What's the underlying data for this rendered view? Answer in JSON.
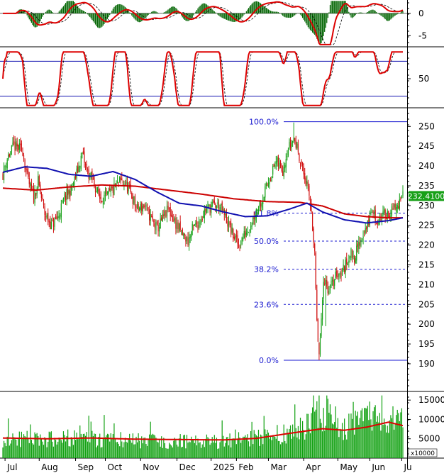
{
  "chart_data": {
    "type": "candlestick",
    "panels": [
      {
        "name": "",
        "ylim": [
          -7.5,
          3
        ],
        "yticks": [
          0,
          -5
        ],
        "zero_line": true
      },
      {
        "name": "",
        "ylim": [
          0,
          100
        ],
        "yticks": [
          50
        ],
        "reference_lines": [
          20,
          80
        ]
      },
      {
        "name": "",
        "ylim": [
          183,
          254
        ],
        "yticks": [
          190,
          195,
          200,
          205,
          210,
          215,
          220,
          225,
          230,
          235,
          240,
          245,
          250
        ],
        "last_price_label": "232.4100",
        "fibonacci": {
          "levels": [
            {
              "label": "100.0%",
              "value": 251.2
            },
            {
              "label": "61.8%",
              "value": 228.1
            },
            {
              "label": "50.0%",
              "value": 221.0
            },
            {
              "label": "38.2%",
              "value": 213.9
            },
            {
              "label": "23.6%",
              "value": 205.0
            },
            {
              "label": "0.0%",
              "value": 190.9
            }
          ]
        },
        "price_keypoints": [
          [
            0,
            238
          ],
          [
            4,
            242
          ],
          [
            10,
            245
          ],
          [
            18,
            244
          ],
          [
            22,
            237
          ],
          [
            28,
            232
          ],
          [
            32,
            236
          ],
          [
            38,
            228
          ],
          [
            44,
            225
          ],
          [
            50,
            227
          ],
          [
            56,
            232
          ],
          [
            62,
            234
          ],
          [
            68,
            239
          ],
          [
            72,
            243
          ],
          [
            76,
            239
          ],
          [
            82,
            236
          ],
          [
            88,
            232
          ],
          [
            94,
            232
          ],
          [
            100,
            234
          ],
          [
            106,
            236
          ],
          [
            110,
            236
          ],
          [
            116,
            233
          ],
          [
            122,
            229
          ],
          [
            128,
            230
          ],
          [
            134,
            227
          ],
          [
            140,
            224
          ],
          [
            146,
            227
          ],
          [
            150,
            229
          ],
          [
            156,
            226
          ],
          [
            162,
            223
          ],
          [
            168,
            221
          ],
          [
            172,
            224
          ],
          [
            178,
            226
          ],
          [
            184,
            229
          ],
          [
            190,
            230
          ],
          [
            196,
            230
          ],
          [
            202,
            227
          ],
          [
            208,
            223
          ],
          [
            214,
            220
          ],
          [
            220,
            223
          ],
          [
            226,
            226
          ],
          [
            230,
            229
          ],
          [
            236,
            232
          ],
          [
            242,
            237
          ],
          [
            248,
            241
          ],
          [
            254,
            239
          ],
          [
            258,
            244
          ],
          [
            264,
            247
          ],
          [
            268,
            244
          ],
          [
            272,
            239
          ],
          [
            276,
            235
          ],
          [
            280,
            229
          ],
          [
            283,
            217
          ],
          [
            285,
            200
          ],
          [
            287,
            192
          ],
          [
            289,
            200
          ],
          [
            291,
            212
          ],
          [
            295,
            209
          ],
          [
            299,
            210
          ],
          [
            303,
            213
          ],
          [
            307,
            213
          ],
          [
            311,
            215
          ],
          [
            315,
            218
          ],
          [
            319,
            217
          ],
          [
            323,
            220
          ],
          [
            327,
            223
          ],
          [
            331,
            225
          ],
          [
            335,
            229
          ],
          [
            339,
            226
          ],
          [
            343,
            227
          ],
          [
            347,
            228
          ],
          [
            351,
            228
          ],
          [
            355,
            229
          ],
          [
            359,
            230
          ],
          [
            363,
            232.4
          ]
        ],
        "sma_fast_keypoints": [
          [
            0,
            238.4
          ],
          [
            20,
            239.8
          ],
          [
            40,
            239.4
          ],
          [
            60,
            237.9
          ],
          [
            80,
            237.4
          ],
          [
            100,
            238.6
          ],
          [
            120,
            236.6
          ],
          [
            140,
            233.4
          ],
          [
            160,
            230.6
          ],
          [
            180,
            229.9
          ],
          [
            200,
            228.4
          ],
          [
            220,
            227.2
          ],
          [
            240,
            227.4
          ],
          [
            260,
            229.1
          ],
          [
            276,
            230.6
          ],
          [
            290,
            228.4
          ],
          [
            310,
            226.4
          ],
          [
            330,
            225.6
          ],
          [
            350,
            226.2
          ],
          [
            363,
            226.9
          ]
        ],
        "sma_slow_keypoints": [
          [
            0,
            234.4
          ],
          [
            30,
            233.9
          ],
          [
            60,
            234.7
          ],
          [
            90,
            235.2
          ],
          [
            120,
            234.9
          ],
          [
            150,
            233.9
          ],
          [
            180,
            232.9
          ],
          [
            210,
            231.7
          ],
          [
            240,
            231.0
          ],
          [
            270,
            230.8
          ],
          [
            290,
            229.9
          ],
          [
            310,
            227.9
          ],
          [
            330,
            227.2
          ],
          [
            350,
            226.9
          ],
          [
            363,
            226.9
          ]
        ]
      },
      {
        "name": "",
        "ylim": [
          0,
          16500
        ],
        "yticks": [
          5000,
          10000,
          15000
        ],
        "unit_label": "x10000",
        "ma_keypoints": [
          [
            0,
            5200
          ],
          [
            40,
            5000
          ],
          [
            80,
            5200
          ],
          [
            120,
            4900
          ],
          [
            160,
            4800
          ],
          [
            200,
            4700
          ],
          [
            230,
            5100
          ],
          [
            260,
            6400
          ],
          [
            290,
            7600
          ],
          [
            310,
            7200
          ],
          [
            330,
            8000
          ],
          [
            350,
            9300
          ],
          [
            363,
            8400
          ]
        ],
        "volume_keypoints": [
          [
            0,
            5000
          ],
          [
            40,
            4800
          ],
          [
            80,
            5000
          ],
          [
            120,
            4500
          ],
          [
            160,
            4300
          ],
          [
            200,
            4300
          ],
          [
            230,
            5000
          ],
          [
            260,
            6800
          ],
          [
            280,
            8500
          ],
          [
            284,
            14000
          ],
          [
            290,
            10500
          ],
          [
            310,
            8000
          ],
          [
            330,
            9500
          ],
          [
            350,
            11000
          ],
          [
            363,
            9000
          ]
        ]
      }
    ],
    "x_labels": [
      {
        "label": "Jul",
        "index": 2
      },
      {
        "label": "Aug",
        "index": 33
      },
      {
        "label": "Sep",
        "index": 66
      },
      {
        "label": "Oct",
        "index": 93
      },
      {
        "label": "Nov",
        "index": 125
      },
      {
        "label": "Dec",
        "index": 158
      },
      {
        "label": "2025",
        "index": 189
      },
      {
        "label": "Feb",
        "index": 212
      },
      {
        "label": "Mar",
        "index": 241
      },
      {
        "label": "Apr",
        "index": 273
      },
      {
        "label": "May",
        "index": 304
      },
      {
        "label": "Jun",
        "index": 333
      },
      {
        "label": "Ju",
        "index": 362
      }
    ],
    "colors": {
      "up": "#18a018",
      "down": "#d01010",
      "sma_fast": "#1010b0",
      "sma_slow": "#cc0000",
      "fib": "#1a1ad0",
      "grid": "#000000",
      "macd_line": "#dd0000",
      "signal_line": "#000000",
      "hist": "#006400",
      "volume": "#10a010"
    }
  }
}
